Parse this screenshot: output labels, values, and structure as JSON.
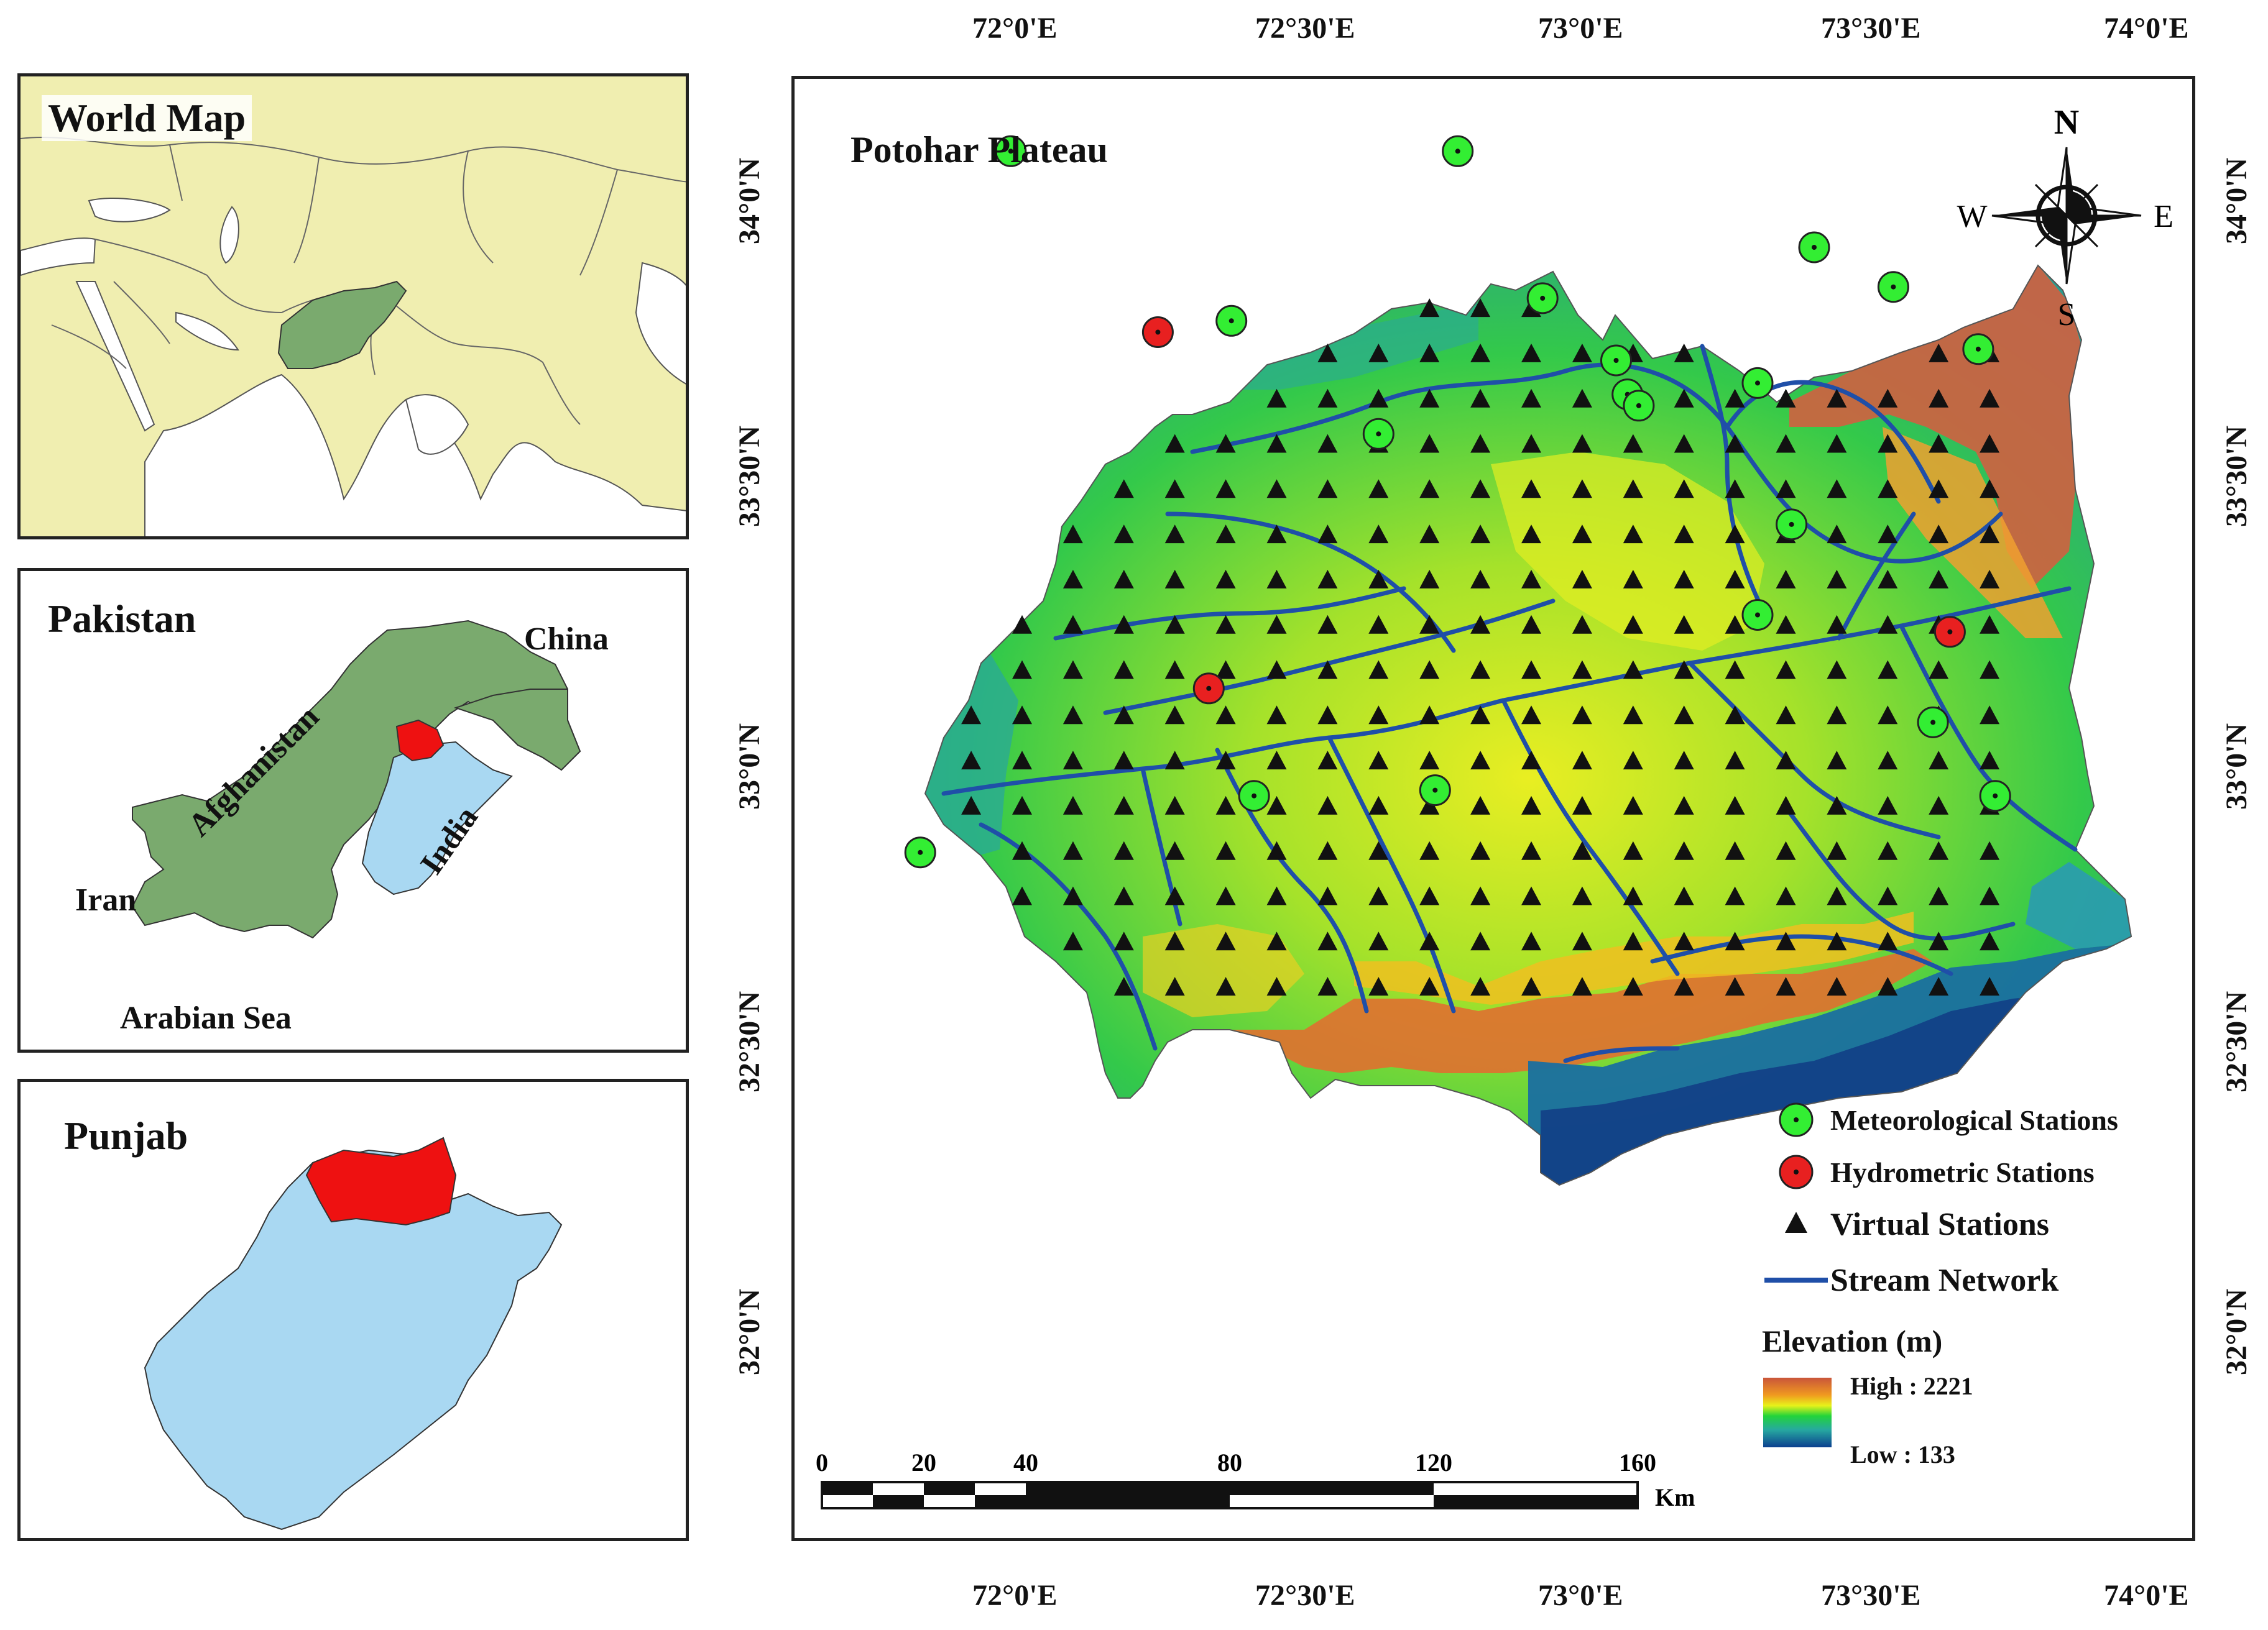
{
  "panels": {
    "world": {
      "title": "World Map"
    },
    "pakistan": {
      "title": "Pakistan",
      "labels": {
        "china": "China",
        "afghanistan": "Afghanistan",
        "india": "India",
        "iran": "Iran",
        "arabian_sea": "Arabian Sea"
      }
    },
    "punjab": {
      "title": "Punjab"
    }
  },
  "map": {
    "title": "Potohar Plateau",
    "lon_ticks": [
      "72°0'E",
      "72°30'E",
      "73°0'E",
      "73°30'E",
      "74°0'E"
    ],
    "lat_ticks": [
      "34°0'N",
      "33°30'N",
      "33°0'N",
      "32°30'N",
      "32°0'N"
    ],
    "compass": {
      "n": "N",
      "s": "S",
      "e": "E",
      "w": "W"
    },
    "scale_bar": {
      "labels": [
        "0",
        "20",
        "40",
        "80",
        "120",
        "160"
      ],
      "unit": "Km"
    }
  },
  "legend": {
    "meteorological": "Meteorological Stations",
    "hydrometric": "Hydrometric Stations",
    "virtual": "Virtual Stations",
    "stream": "Stream Network",
    "elevation_title": "Elevation (m)",
    "high": "High : 2221",
    "low": "Low : 133"
  },
  "colors": {
    "world_land": "#f0eeb0",
    "pakistan_green": "#7aaa6e",
    "punjab_blue": "#a9d8f2",
    "potohar_red": "#ee1111",
    "met_station": "#33ee33",
    "hydro_station": "#e82020",
    "stream": "#1f4fa8"
  },
  "stations": {
    "meteorological": [
      {
        "lon": 71.98,
        "lat": 34.07
      },
      {
        "lon": 72.77,
        "lat": 34.07
      },
      {
        "lon": 72.37,
        "lat": 33.77
      },
      {
        "lon": 72.92,
        "lat": 33.81
      },
      {
        "lon": 73.4,
        "lat": 33.9
      },
      {
        "lon": 73.54,
        "lat": 33.83
      },
      {
        "lon": 73.69,
        "lat": 33.72
      },
      {
        "lon": 73.05,
        "lat": 33.7
      },
      {
        "lon": 73.07,
        "lat": 33.64
      },
      {
        "lon": 73.09,
        "lat": 33.62
      },
      {
        "lon": 73.3,
        "lat": 33.66
      },
      {
        "lon": 72.63,
        "lat": 33.57
      },
      {
        "lon": 73.36,
        "lat": 33.41
      },
      {
        "lon": 73.3,
        "lat": 33.25
      },
      {
        "lon": 73.61,
        "lat": 33.06
      },
      {
        "lon": 73.72,
        "lat": 32.93
      },
      {
        "lon": 72.41,
        "lat": 32.93
      },
      {
        "lon": 72.73,
        "lat": 32.94
      },
      {
        "lon": 71.82,
        "lat": 32.83
      }
    ],
    "hydrometric": [
      {
        "lon": 72.24,
        "lat": 33.75
      },
      {
        "lon": 72.33,
        "lat": 33.12
      },
      {
        "lon": 73.64,
        "lat": 33.22
      }
    ]
  }
}
